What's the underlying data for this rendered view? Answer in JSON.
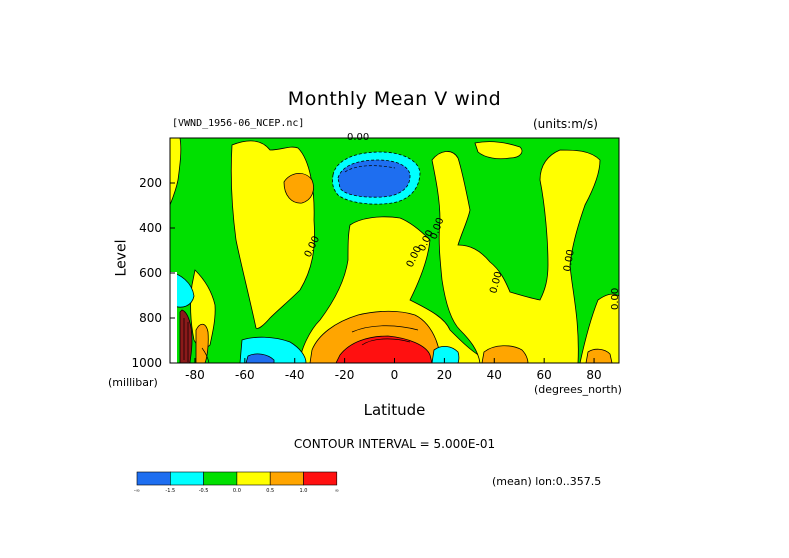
{
  "title": "Monthly Mean V wind",
  "file_label": "[VWND_1956-06_NCEP.nc]",
  "units_label": "(units:m/s)",
  "contour_interval": "CONTOUR INTERVAL = 5.000E-01",
  "mean_label": "(mean) lon:0..357.5",
  "chart_data": {
    "type": "heatmap",
    "title": "Monthly Mean V wind",
    "xlabel": "Latitude",
    "ylabel": "Level",
    "x_units": "(degrees_north)",
    "y_units": "(millibar)",
    "xlim": [
      -90,
      90
    ],
    "ylim": [
      1000,
      0
    ],
    "x_ticks": [
      -80,
      -60,
      -40,
      -20,
      0,
      20,
      40,
      60,
      80
    ],
    "y_ticks": [
      200,
      400,
      600,
      800,
      1000
    ],
    "contour_labels": [
      "0.00",
      "0.00",
      "0.00",
      "0.00",
      "0.00",
      "0.00",
      "0.00",
      "0.00"
    ],
    "colorbar": {
      "tick_labels": [
        "-∞",
        "-1.5",
        "-0.5",
        "0.0",
        "0.5",
        "1.0",
        "∞"
      ],
      "colors": [
        "#1e6ef0",
        "#00ffff",
        "#00e000",
        "#ffff00",
        "#ffa500",
        "#ff1010"
      ]
    }
  }
}
